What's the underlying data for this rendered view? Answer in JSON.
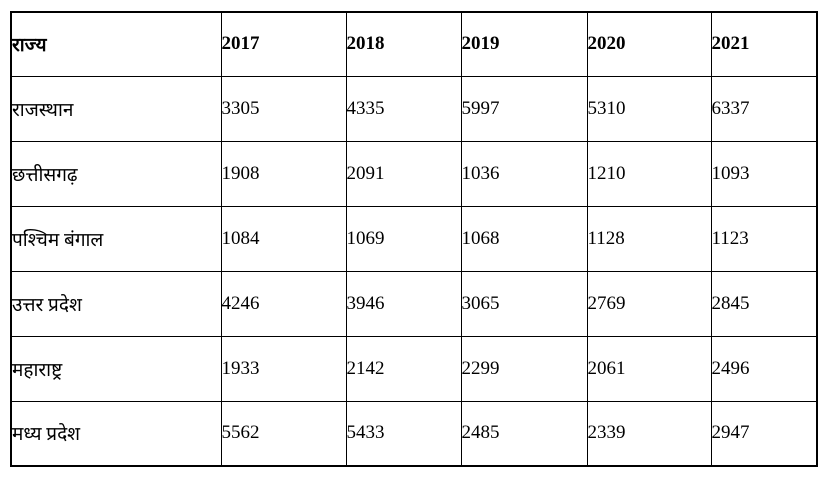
{
  "table": {
    "header": {
      "state_label": "राज्य",
      "years": [
        "2017",
        "2018",
        "2019",
        "2020",
        "2021"
      ]
    },
    "rows": [
      {
        "state": "राजस्थान",
        "values": [
          "3305",
          "4335",
          "5997",
          "5310",
          "6337"
        ]
      },
      {
        "state": "छत्तीसगढ़",
        "values": [
          "1908",
          "2091",
          "1036",
          "1210",
          "1093"
        ]
      },
      {
        "state": "पश्चिम बंगाल",
        "values": [
          "1084",
          "1069",
          "1068",
          "1128",
          "1123"
        ]
      },
      {
        "state": "उत्तर प्रदेश",
        "values": [
          "4246",
          "3946",
          "3065",
          "2769",
          "2845"
        ]
      },
      {
        "state": "महाराष्ट्र",
        "values": [
          "1933",
          "2142",
          "2299",
          "2061",
          "2496"
        ]
      },
      {
        "state": "मध्य प्रदेश",
        "values": [
          "5562",
          "5433",
          "2485",
          "2339",
          "2947"
        ]
      }
    ],
    "colors": {
      "border": "#000000",
      "background": "#ffffff",
      "text": "#000000"
    }
  },
  "chart_data": {
    "type": "table",
    "title": "",
    "row_header_label": "राज्य",
    "categories": [
      "2017",
      "2018",
      "2019",
      "2020",
      "2021"
    ],
    "series": [
      {
        "name": "राजस्थान",
        "values": [
          3305,
          4335,
          5997,
          5310,
          6337
        ]
      },
      {
        "name": "छत्तीसगढ़",
        "values": [
          1908,
          2091,
          1036,
          1210,
          1093
        ]
      },
      {
        "name": "पश्चिम बंगाल",
        "values": [
          1084,
          1069,
          1068,
          1128,
          1123
        ]
      },
      {
        "name": "उत्तर प्रदेश",
        "values": [
          4246,
          3946,
          3065,
          2769,
          2845
        ]
      },
      {
        "name": "महाराष्ट्र",
        "values": [
          1933,
          2142,
          2299,
          2061,
          2496
        ]
      },
      {
        "name": "मध्य प्रदेश",
        "values": [
          5562,
          5433,
          2485,
          2339,
          2947
        ]
      }
    ]
  }
}
